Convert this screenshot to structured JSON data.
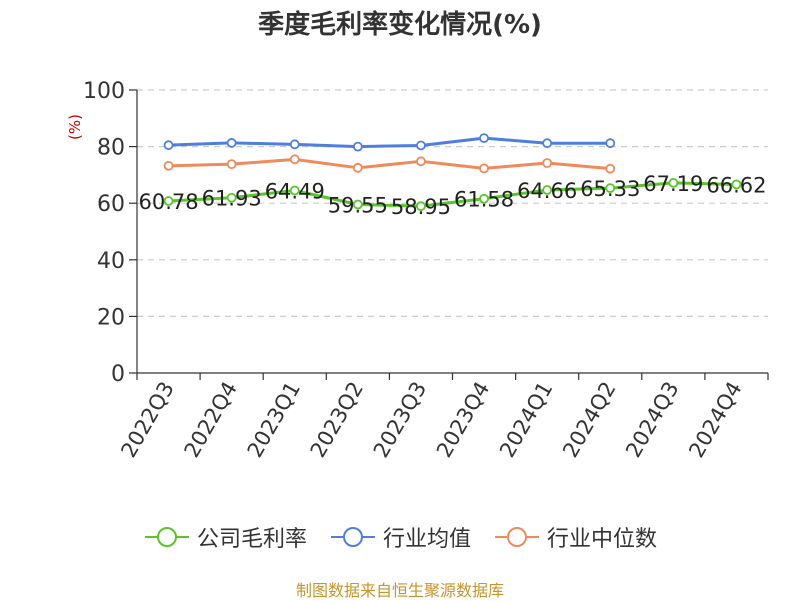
{
  "chart_data": {
    "type": "line",
    "title": "季度毛利率变化情况(%)",
    "ylabel": "(%)",
    "xlabel": "",
    "categories": [
      "2022Q3",
      "2022Q4",
      "2023Q1",
      "2023Q2",
      "2023Q3",
      "2023Q4",
      "2024Q1",
      "2024Q2",
      "2024Q3",
      "2024Q4"
    ],
    "ylim": [
      0,
      100
    ],
    "yticks": [
      0,
      20,
      40,
      60,
      80,
      100
    ],
    "grid": true,
    "legend_position": "bottom",
    "series": [
      {
        "name": "公司毛利率",
        "color": "#5ac52a",
        "values": [
          60.78,
          61.93,
          64.49,
          59.55,
          58.95,
          61.58,
          64.66,
          65.33,
          67.19,
          66.62
        ],
        "labels": [
          "60.78",
          "61.93",
          "64.49",
          "59.55",
          "58.95",
          "61.58",
          "64.66",
          "65.33",
          "67.19",
          "66.62"
        ]
      },
      {
        "name": "行业均值",
        "color": "#4f7fde",
        "values": [
          80.5,
          81.3,
          80.8,
          80.0,
          80.4,
          83.0,
          81.2,
          81.2,
          null,
          null
        ]
      },
      {
        "name": "行业中位数",
        "color": "#f08a5a",
        "values": [
          73.2,
          73.8,
          75.5,
          72.5,
          74.8,
          72.3,
          74.2,
          72.2,
          null,
          null
        ]
      }
    ]
  },
  "footer": {
    "source": "制图数据来自恒生聚源数据库"
  }
}
